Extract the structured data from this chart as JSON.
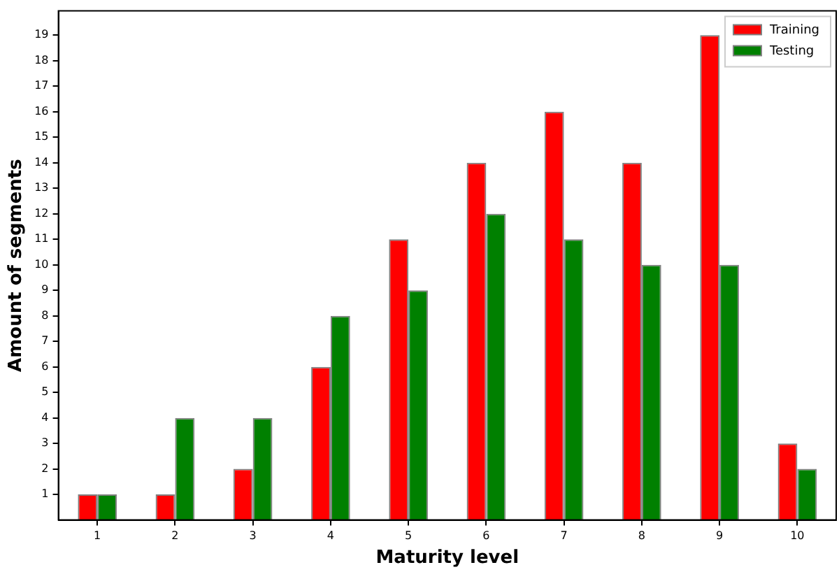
{
  "chart_data": {
    "type": "bar",
    "xlabel": "Maturity level",
    "ylabel": "Amount of segments",
    "categories": [
      "1",
      "2",
      "3",
      "4",
      "5",
      "6",
      "7",
      "8",
      "9",
      "10"
    ],
    "series": [
      {
        "name": "Training",
        "color": "#ff0000",
        "values": [
          1,
          1,
          2,
          6,
          11,
          14,
          16,
          14,
          19,
          3
        ]
      },
      {
        "name": "Testing",
        "color": "#008000",
        "values": [
          1,
          4,
          4,
          8,
          9,
          12,
          11,
          10,
          10,
          2
        ]
      }
    ],
    "ylim": [
      0,
      19.95
    ],
    "yticks": [
      1,
      2,
      3,
      4,
      5,
      6,
      7,
      8,
      9,
      10,
      11,
      12,
      13,
      14,
      15,
      16,
      17,
      18,
      19
    ],
    "grid": false,
    "legend": "top right"
  }
}
